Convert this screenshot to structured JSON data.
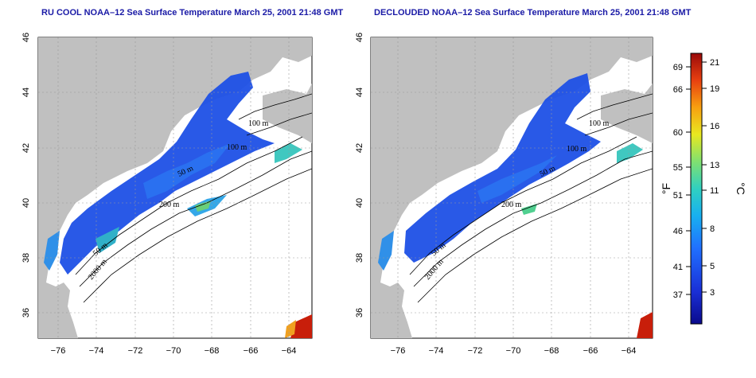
{
  "panels": [
    {
      "title": "RU COOL NOAA–12 Sea Surface Temperature March 25, 2001 21:48 GMT",
      "contour_labels": [
        "100 m",
        "50 m",
        "200 m",
        "50 m",
        "2000 m",
        "100 m"
      ]
    },
    {
      "title": "DECLOUDED NOAA–12 Sea Surface Temperature March 25, 2001 21:48 GMT",
      "contour_labels": [
        "100 m",
        "50 m",
        "200 m",
        "50 m",
        "2000 m",
        "100 m"
      ]
    }
  ],
  "axes": {
    "lon_ticks": [
      "−76",
      "−74",
      "−72",
      "−70",
      "−68",
      "−66",
      "−64"
    ],
    "lat_ticks": [
      "36",
      "38",
      "40",
      "42",
      "44",
      "46"
    ]
  },
  "colorbar": {
    "f_label": "°F",
    "c_label": "°C",
    "f_ticks": [
      "69",
      "66",
      "60",
      "55",
      "51",
      "46",
      "41",
      "37"
    ],
    "c_ticks": [
      "21",
      "19",
      "16",
      "13",
      "11",
      "8",
      "5",
      "3"
    ]
  },
  "colors": {
    "land": "#c0c0c0",
    "ocean": "#ffffff",
    "title": "#1a1aa6",
    "sst_cold": "#1f3ad6",
    "sst_warm": "#c81e0a"
  }
}
